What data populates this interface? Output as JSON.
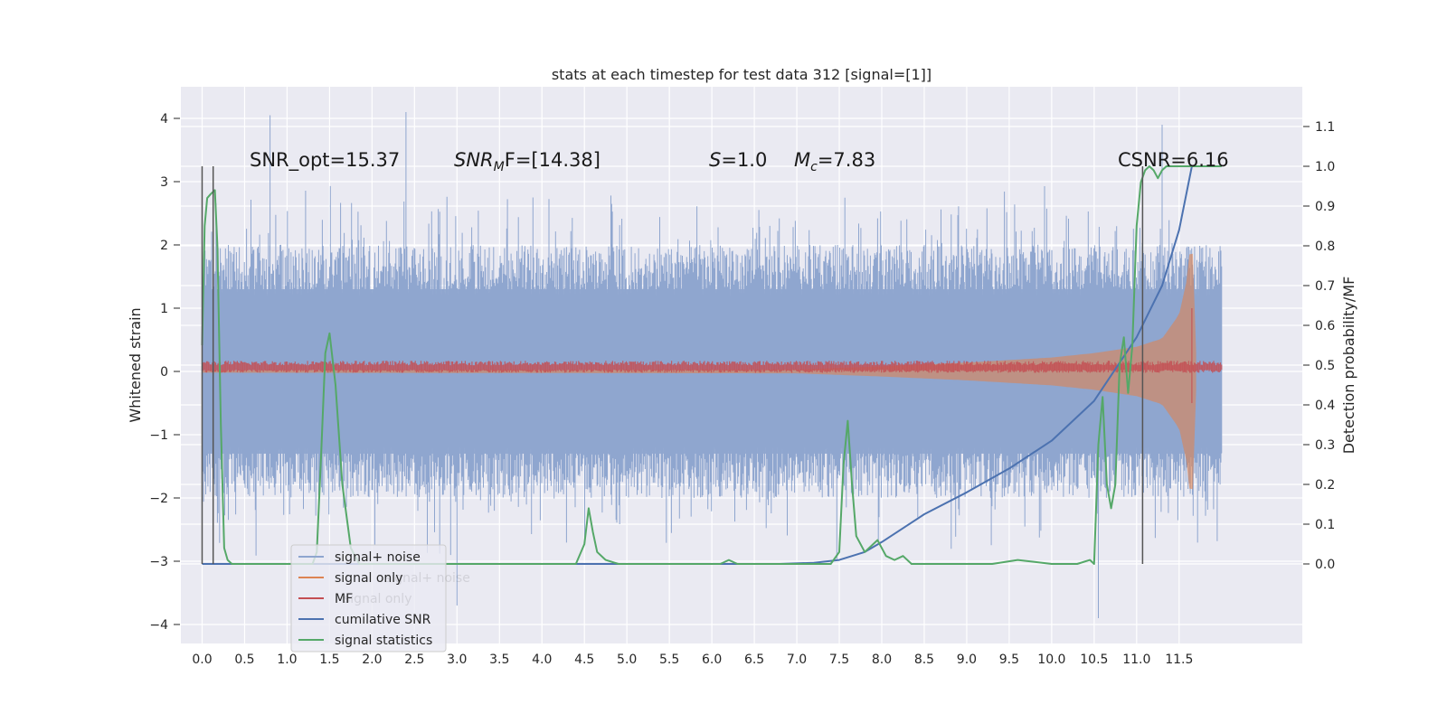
{
  "chart_data": {
    "type": "line",
    "title": "stats at each timestep for test data 312 [signal=[1]]",
    "ylabel": "Whitened strain",
    "y2label": "Detection probability/MF",
    "xlim": [
      -0.25,
      12.95
    ],
    "ylim": [
      -4.3,
      4.5
    ],
    "y2lim": [
      -0.2,
      1.2
    ],
    "xticks": [
      "0.0",
      "0.5",
      "1.0",
      "1.5",
      "2.0",
      "2.5",
      "3.0",
      "3.5",
      "4.0",
      "4.5",
      "5.0",
      "5.5",
      "6.0",
      "6.5",
      "7.0",
      "7.5",
      "8.0",
      "8.5",
      "9.0",
      "9.5",
      "10.0",
      "10.5",
      "11.0",
      "11.5"
    ],
    "yticks": [
      "4",
      "3",
      "2",
      "1",
      "0",
      "−1",
      "−2",
      "−3",
      "−4"
    ],
    "y2ticks": [
      "1.1",
      "1.0",
      "0.9",
      "0.8",
      "0.7",
      "0.6",
      "0.5",
      "0.4",
      "0.3",
      "0.2",
      "0.1",
      "0.0"
    ],
    "grid": true,
    "legend_position": "lower-left",
    "annotations": {
      "snr_opt": "SNR_opt=15.37",
      "snr_mf_base": "SNR",
      "snr_mf_sub": "M",
      "snr_mf_rest": "F=[14.38]",
      "s_sym": "S",
      "s_val": "=1.0",
      "mc_sym": "M",
      "mc_sub": "c",
      "mc_val": "=7.83",
      "csnr": "CSNR=6.16"
    },
    "vlines_x": [
      0.0,
      0.13,
      11.07
    ],
    "series": [
      {
        "name": "signal+ noise",
        "axis": "left",
        "color": "#8fa6cf",
        "x_range": [
          0.0,
          12.0
        ],
        "amplitude_typical": 2.0,
        "amplitude_max": 4.1,
        "note_peaks": [
          [
            0.8,
            4.05
          ],
          [
            2.4,
            4.1
          ],
          [
            11.3,
            3.9
          ],
          [
            10.55,
            -3.9
          ],
          [
            3.0,
            -3.7
          ]
        ]
      },
      {
        "name": "signal only",
        "axis": "left",
        "color": "#dd8452",
        "x": [
          0.0,
          7.0,
          8.0,
          9.0,
          10.0,
          10.5,
          11.0,
          11.3,
          11.5,
          11.6,
          11.65,
          11.7
        ],
        "envelope": [
          0.02,
          0.03,
          0.08,
          0.14,
          0.22,
          0.29,
          0.39,
          0.52,
          0.9,
          1.5,
          2.3,
          0.3
        ]
      },
      {
        "name": "MF",
        "axis": "left",
        "color": "#c44e52",
        "x_range": [
          0.0,
          12.0
        ],
        "level": 0.05,
        "spread": 0.12,
        "spike": [
          11.65,
          1.0,
          -0.5
        ]
      },
      {
        "name": "cumilative SNR",
        "axis": "right",
        "color": "#4c72b0",
        "x": [
          0.0,
          6.8,
          7.2,
          7.5,
          7.8,
          8.0,
          8.5,
          9.0,
          9.5,
          10.0,
          10.5,
          11.0,
          11.3,
          11.5,
          11.65
        ],
        "y": [
          0.0,
          0.0,
          0.003,
          0.01,
          0.03,
          0.055,
          0.125,
          0.18,
          0.24,
          0.31,
          0.41,
          0.57,
          0.7,
          0.84,
          1.0
        ]
      },
      {
        "name": "signal statistics",
        "axis": "right",
        "color": "#55a868",
        "x": [
          0.0,
          0.03,
          0.06,
          0.1,
          0.15,
          0.18,
          0.22,
          0.26,
          0.3,
          0.35,
          0.45,
          1.0,
          1.3,
          1.35,
          1.4,
          1.45,
          1.5,
          1.57,
          1.65,
          1.75,
          1.85,
          1.95,
          4.2,
          4.4,
          4.5,
          4.55,
          4.6,
          4.65,
          4.75,
          4.9,
          6.1,
          6.2,
          6.3,
          7.4,
          7.5,
          7.55,
          7.6,
          7.65,
          7.7,
          7.8,
          7.9,
          7.95,
          8.05,
          8.15,
          8.25,
          8.35,
          8.6,
          9.0,
          9.3,
          9.6,
          10.0,
          10.3,
          10.45,
          10.5,
          10.55,
          10.6,
          10.65,
          10.7,
          10.75,
          10.8,
          10.85,
          10.9,
          10.95,
          11.0,
          11.05,
          11.1,
          11.15,
          11.2,
          11.25,
          11.3,
          11.35,
          11.4,
          11.45,
          11.5,
          11.55,
          11.6,
          11.8,
          12.0
        ],
        "y": [
          0.55,
          0.85,
          0.92,
          0.93,
          0.94,
          0.8,
          0.35,
          0.04,
          0.01,
          0.0,
          0.0,
          0.0,
          0.0,
          0.03,
          0.27,
          0.53,
          0.58,
          0.45,
          0.2,
          0.04,
          0.0,
          0.0,
          0.0,
          0.0,
          0.05,
          0.14,
          0.08,
          0.03,
          0.01,
          0.0,
          0.0,
          0.01,
          0.0,
          0.0,
          0.03,
          0.25,
          0.36,
          0.2,
          0.07,
          0.03,
          0.05,
          0.06,
          0.02,
          0.01,
          0.02,
          0.0,
          0.0,
          0.0,
          0.0,
          0.01,
          0.0,
          0.0,
          0.01,
          0.0,
          0.3,
          0.42,
          0.2,
          0.14,
          0.2,
          0.5,
          0.57,
          0.43,
          0.55,
          0.85,
          0.96,
          0.99,
          1.0,
          0.99,
          0.97,
          0.99,
          1.0,
          1.0,
          1.0,
          1.0,
          1.0,
          1.0,
          1.0,
          1.0
        ]
      }
    ]
  }
}
